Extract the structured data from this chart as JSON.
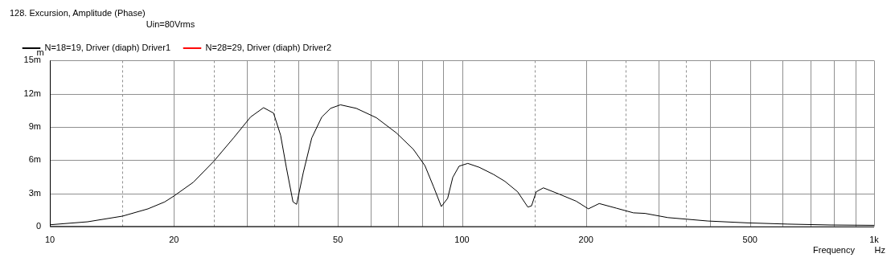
{
  "chart_data": {
    "type": "line",
    "title": "128. Excursion, Amplitude (Phase)",
    "legend_title": "Uin=80Vrms",
    "xlabel": "Frequency",
    "ylabel": "m",
    "annotations": [
      "Hz"
    ],
    "log": "x",
    "grid": true,
    "legend": "top left",
    "marker": "none",
    "line_style": "solid",
    "xlim": [
      10,
      1000
    ],
    "xticks": [
      10,
      {
        "value": 15,
        "label": null
      },
      20,
      {
        "value": 25,
        "label": null
      },
      {
        "value": 30,
        "label": null
      },
      {
        "value": 35,
        "label": null
      },
      {
        "value": 40,
        "label": null
      },
      50,
      {
        "value": 60,
        "label": null
      },
      {
        "value": 70,
        "label": null
      },
      {
        "value": 80,
        "label": null
      },
      {
        "value": 90,
        "label": null
      },
      100,
      {
        "value": 150,
        "label": null
      },
      200,
      {
        "value": 250,
        "label": null
      },
      {
        "value": 300,
        "label": null
      },
      {
        "value": 350,
        "label": null
      },
      {
        "value": 400,
        "label": null
      },
      500,
      {
        "value": 600,
        "label": null
      },
      {
        "value": 700,
        "label": null
      },
      {
        "value": 800,
        "label": null
      },
      {
        "value": 900,
        "label": null
      },
      {
        "value": 1000,
        "label": "1k"
      }
    ],
    "ylim": [
      0,
      15
    ],
    "yticks": [
      0,
      {
        "value": 3,
        "label": "3m"
      },
      {
        "value": 6,
        "label": "6m"
      },
      {
        "value": 9,
        "label": "9m"
      },
      {
        "value": 12,
        "label": "12m"
      },
      {
        "value": 15,
        "label": "15m"
      }
    ],
    "x": [
      10,
      12.35,
      15,
      17.3,
      19,
      20,
      22.3,
      25,
      27.9,
      30.7,
      33,
      34.9,
      36.3,
      37.5,
      38.9,
      39.7,
      41.2,
      43.2,
      45.7,
      48,
      50.7,
      55.4,
      62,
      69.3,
      76.2,
      81.3,
      85.3,
      89.1,
      92.3,
      95,
      98.4,
      103.3,
      110.1,
      119.2,
      127.1,
      136.5,
      144.5,
      147.5,
      151.4,
      157.6,
      172.2,
      189.4,
      202.6,
      215.3,
      237,
      260.6,
      278,
      315.8,
      395,
      494,
      618,
      785,
      1000
    ],
    "series": [
      {
        "name": "N=18=19, Driver (diaph) Driver1",
        "color": "#000000",
        "values": [
          0.15,
          0.42,
          0.93,
          1.59,
          2.22,
          2.75,
          4.0,
          5.9,
          8.0,
          9.9,
          10.74,
          10.25,
          8.25,
          5.3,
          2.22,
          2.0,
          4.86,
          8.0,
          9.9,
          10.68,
          11.0,
          10.68,
          9.83,
          8.46,
          6.98,
          5.5,
          3.6,
          1.8,
          2.54,
          4.44,
          5.45,
          5.7,
          5.35,
          4.71,
          4.08,
          3.13,
          1.75,
          1.86,
          3.13,
          3.49,
          2.92,
          2.28,
          1.59,
          2.07,
          1.65,
          1.23,
          1.18,
          0.8,
          0.49,
          0.32,
          0.21,
          0.13,
          0.1
        ]
      },
      {
        "name": "N=28=29, Driver (diaph) Driver2",
        "color": "#ff0000",
        "values": [
          null,
          null,
          null,
          null,
          null,
          null,
          null,
          null,
          null,
          null,
          null,
          null,
          null,
          null,
          null,
          null,
          null,
          null,
          null,
          null,
          null,
          null,
          null,
          null,
          null,
          null,
          null,
          null,
          null,
          null,
          null,
          null,
          null,
          null,
          null,
          null,
          null,
          null,
          null,
          null,
          null,
          null,
          null,
          null,
          null,
          null,
          null,
          null,
          null,
          null,
          null,
          null,
          null
        ]
      }
    ]
  }
}
